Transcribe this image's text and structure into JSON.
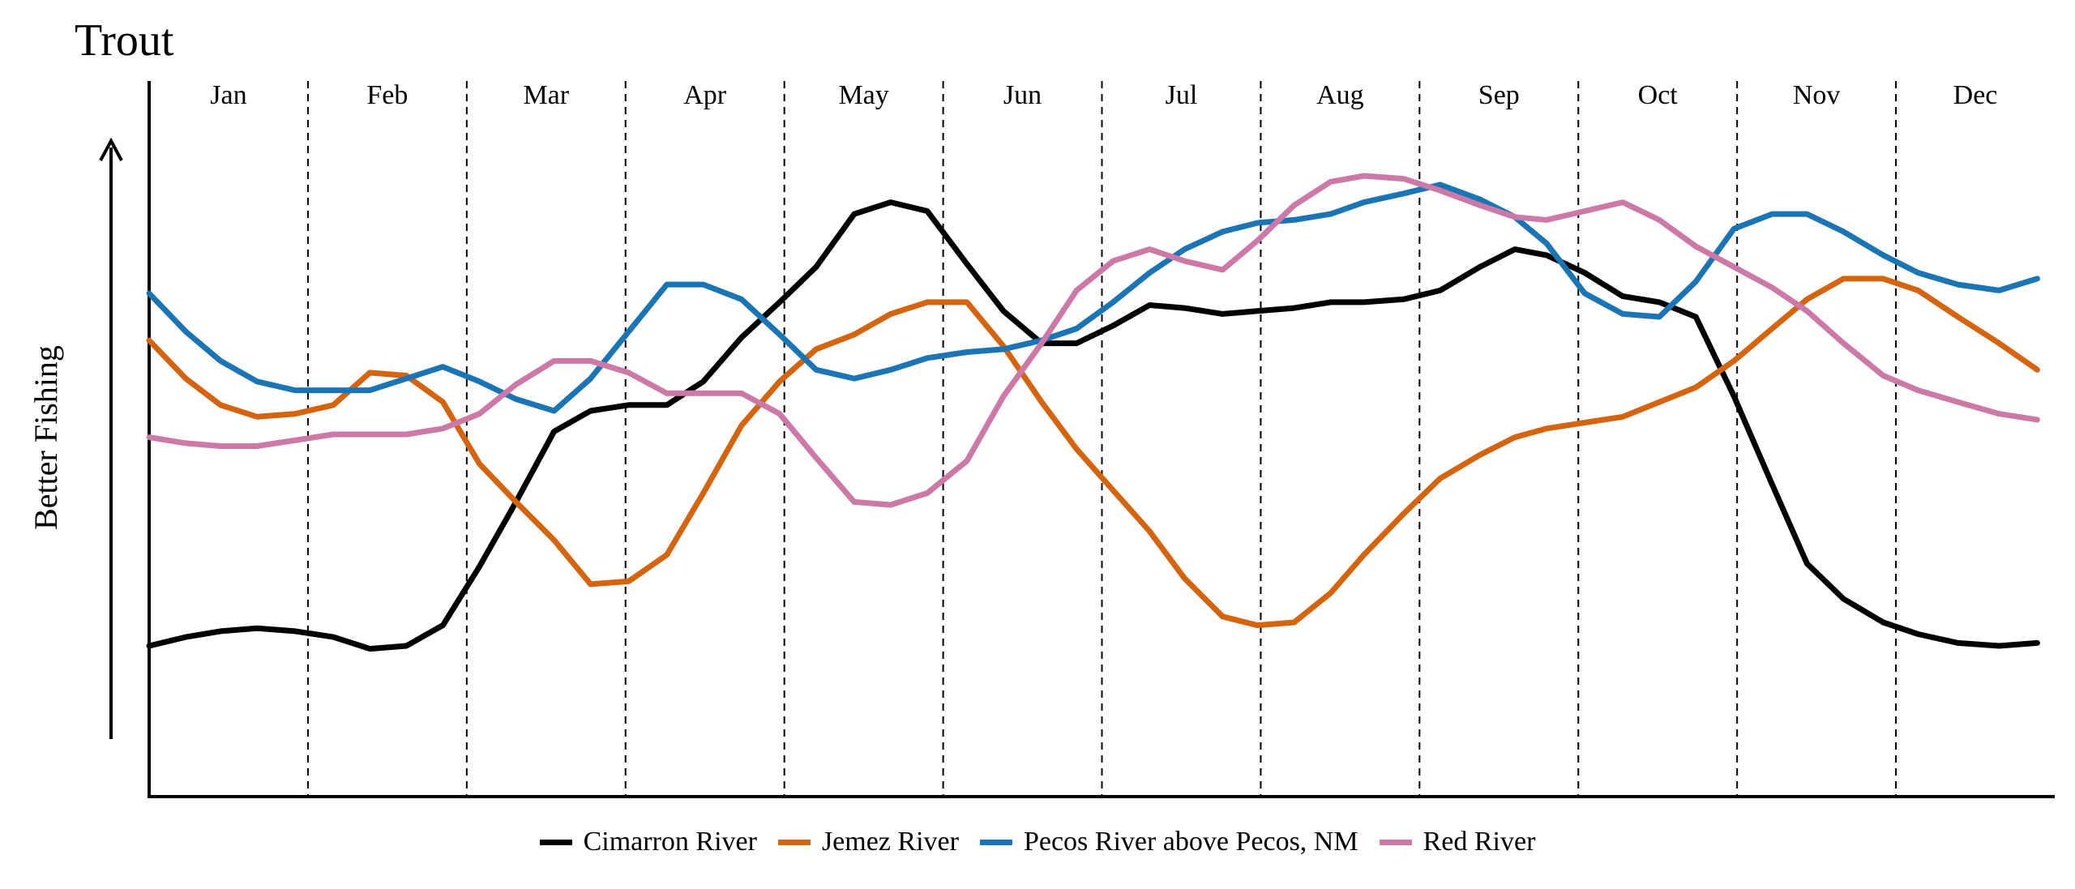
{
  "chart_data": {
    "type": "line",
    "title": "Trout",
    "ylabel": "Better Fishing",
    "categories": [
      "Jan",
      "Feb",
      "Mar",
      "Apr",
      "May",
      "Jun",
      "Jul",
      "Aug",
      "Sep",
      "Oct",
      "Nov",
      "Dec"
    ],
    "ylim": [
      0,
      100
    ],
    "grid": "monthly vertical dashed separators",
    "legend_position": "bottom",
    "series": [
      {
        "name": "Cimarron River",
        "color": "#000000",
        "points": [
          [
            0.0,
            16.0
          ],
          [
            0.23,
            17.5
          ],
          [
            0.45,
            18.5
          ],
          [
            0.68,
            19.0
          ],
          [
            0.92,
            18.5
          ],
          [
            1.16,
            17.5
          ],
          [
            1.39,
            15.5
          ],
          [
            1.62,
            16.0
          ],
          [
            1.85,
            19.5
          ],
          [
            2.08,
            29.5
          ],
          [
            2.31,
            40.5
          ],
          [
            2.55,
            52.5
          ],
          [
            2.78,
            56.0
          ],
          [
            3.02,
            57.0
          ],
          [
            3.26,
            57.0
          ],
          [
            3.49,
            61.0
          ],
          [
            3.73,
            68.5
          ],
          [
            3.97,
            74.5
          ],
          [
            4.2,
            80.5
          ],
          [
            4.44,
            89.5
          ],
          [
            4.67,
            91.5
          ],
          [
            4.9,
            90.0
          ],
          [
            5.15,
            81.0
          ],
          [
            5.38,
            73.0
          ],
          [
            5.62,
            67.5
          ],
          [
            5.84,
            67.5
          ],
          [
            6.07,
            70.5
          ],
          [
            6.3,
            74.0
          ],
          [
            6.52,
            73.5
          ],
          [
            6.76,
            72.5
          ],
          [
            6.98,
            73.0
          ],
          [
            7.21,
            73.5
          ],
          [
            7.44,
            74.5
          ],
          [
            7.65,
            74.5
          ],
          [
            7.9,
            75.0
          ],
          [
            8.13,
            76.5
          ],
          [
            8.38,
            80.5
          ],
          [
            8.6,
            83.5
          ],
          [
            8.8,
            82.5
          ],
          [
            9.04,
            79.5
          ],
          [
            9.28,
            75.5
          ],
          [
            9.51,
            74.5
          ],
          [
            9.74,
            72.0
          ],
          [
            9.98,
            58.5
          ],
          [
            10.22,
            43.5
          ],
          [
            10.44,
            30.0
          ],
          [
            10.67,
            24.0
          ],
          [
            10.92,
            20.0
          ],
          [
            11.14,
            18.0
          ],
          [
            11.39,
            16.5
          ],
          [
            11.65,
            16.0
          ],
          [
            11.89,
            16.5
          ]
        ]
      },
      {
        "name": "Jemez River",
        "color": "#D5640F",
        "points": [
          [
            0.0,
            68.0
          ],
          [
            0.23,
            61.5
          ],
          [
            0.45,
            57.0
          ],
          [
            0.68,
            55.0
          ],
          [
            0.92,
            55.5
          ],
          [
            1.16,
            57.0
          ],
          [
            1.39,
            62.5
          ],
          [
            1.62,
            62.0
          ],
          [
            1.85,
            57.5
          ],
          [
            2.08,
            47.0
          ],
          [
            2.31,
            40.5
          ],
          [
            2.55,
            34.0
          ],
          [
            2.78,
            26.5
          ],
          [
            3.02,
            27.0
          ],
          [
            3.26,
            31.5
          ],
          [
            3.49,
            42.0
          ],
          [
            3.73,
            53.5
          ],
          [
            3.97,
            61.0
          ],
          [
            4.2,
            66.5
          ],
          [
            4.44,
            69.0
          ],
          [
            4.67,
            72.5
          ],
          [
            4.9,
            74.5
          ],
          [
            5.15,
            74.5
          ],
          [
            5.38,
            67.0
          ],
          [
            5.62,
            57.5
          ],
          [
            5.84,
            49.5
          ],
          [
            6.07,
            42.5
          ],
          [
            6.3,
            35.5
          ],
          [
            6.52,
            27.5
          ],
          [
            6.76,
            21.0
          ],
          [
            6.98,
            19.5
          ],
          [
            7.21,
            20.0
          ],
          [
            7.44,
            25.0
          ],
          [
            7.65,
            31.5
          ],
          [
            7.9,
            38.5
          ],
          [
            8.13,
            44.5
          ],
          [
            8.38,
            48.5
          ],
          [
            8.6,
            51.5
          ],
          [
            8.8,
            53.0
          ],
          [
            9.04,
            54.0
          ],
          [
            9.28,
            55.0
          ],
          [
            9.51,
            57.5
          ],
          [
            9.74,
            60.0
          ],
          [
            9.98,
            64.5
          ],
          [
            10.22,
            70.0
          ],
          [
            10.44,
            75.0
          ],
          [
            10.67,
            78.5
          ],
          [
            10.92,
            78.5
          ],
          [
            11.14,
            76.5
          ],
          [
            11.39,
            72.0
          ],
          [
            11.65,
            67.5
          ],
          [
            11.89,
            63.0
          ]
        ]
      },
      {
        "name": "Pecos River above Pecos, NM",
        "color": "#1B75B5",
        "points": [
          [
            0.0,
            76.0
          ],
          [
            0.23,
            69.5
          ],
          [
            0.45,
            64.5
          ],
          [
            0.68,
            61.0
          ],
          [
            0.92,
            59.5
          ],
          [
            1.16,
            59.5
          ],
          [
            1.39,
            59.5
          ],
          [
            1.62,
            61.5
          ],
          [
            1.85,
            63.5
          ],
          [
            2.08,
            61.0
          ],
          [
            2.31,
            58.0
          ],
          [
            2.55,
            56.0
          ],
          [
            2.78,
            61.5
          ],
          [
            3.02,
            69.5
          ],
          [
            3.26,
            77.5
          ],
          [
            3.49,
            77.5
          ],
          [
            3.73,
            75.0
          ],
          [
            3.97,
            69.0
          ],
          [
            4.2,
            63.0
          ],
          [
            4.44,
            61.5
          ],
          [
            4.67,
            63.0
          ],
          [
            4.9,
            65.0
          ],
          [
            5.15,
            66.0
          ],
          [
            5.38,
            66.5
          ],
          [
            5.62,
            68.0
          ],
          [
            5.84,
            70.0
          ],
          [
            6.07,
            74.5
          ],
          [
            6.3,
            79.5
          ],
          [
            6.52,
            83.5
          ],
          [
            6.76,
            86.5
          ],
          [
            6.98,
            88.0
          ],
          [
            7.21,
            88.5
          ],
          [
            7.44,
            89.5
          ],
          [
            7.65,
            91.5
          ],
          [
            7.9,
            93.0
          ],
          [
            8.13,
            94.5
          ],
          [
            8.38,
            92.0
          ],
          [
            8.6,
            89.0
          ],
          [
            8.8,
            84.5
          ],
          [
            9.04,
            76.0
          ],
          [
            9.28,
            72.5
          ],
          [
            9.51,
            72.0
          ],
          [
            9.74,
            78.0
          ],
          [
            9.98,
            87.0
          ],
          [
            10.22,
            89.5
          ],
          [
            10.44,
            89.5
          ],
          [
            10.67,
            86.5
          ],
          [
            10.92,
            82.5
          ],
          [
            11.14,
            79.5
          ],
          [
            11.39,
            77.5
          ],
          [
            11.65,
            76.5
          ],
          [
            11.89,
            78.5
          ]
        ]
      },
      {
        "name": "Red River",
        "color": "#CC79A7",
        "points": [
          [
            0.0,
            51.5
          ],
          [
            0.23,
            50.5
          ],
          [
            0.45,
            50.0
          ],
          [
            0.68,
            50.0
          ],
          [
            0.92,
            51.0
          ],
          [
            1.16,
            52.0
          ],
          [
            1.39,
            52.0
          ],
          [
            1.62,
            52.0
          ],
          [
            1.85,
            53.0
          ],
          [
            2.08,
            55.5
          ],
          [
            2.31,
            60.5
          ],
          [
            2.55,
            64.5
          ],
          [
            2.78,
            64.5
          ],
          [
            3.02,
            62.5
          ],
          [
            3.26,
            59.0
          ],
          [
            3.49,
            59.0
          ],
          [
            3.73,
            59.0
          ],
          [
            3.97,
            55.5
          ],
          [
            4.2,
            48.0
          ],
          [
            4.44,
            40.5
          ],
          [
            4.67,
            40.0
          ],
          [
            4.9,
            42.0
          ],
          [
            5.15,
            47.5
          ],
          [
            5.38,
            58.5
          ],
          [
            5.62,
            67.5
          ],
          [
            5.84,
            76.5
          ],
          [
            6.07,
            81.5
          ],
          [
            6.3,
            83.5
          ],
          [
            6.52,
            81.5
          ],
          [
            6.76,
            80.0
          ],
          [
            6.98,
            85.0
          ],
          [
            7.21,
            91.0
          ],
          [
            7.44,
            95.0
          ],
          [
            7.65,
            96.0
          ],
          [
            7.9,
            95.5
          ],
          [
            8.13,
            93.5
          ],
          [
            8.38,
            91.0
          ],
          [
            8.6,
            89.0
          ],
          [
            8.8,
            88.5
          ],
          [
            9.04,
            90.0
          ],
          [
            9.28,
            91.5
          ],
          [
            9.51,
            88.5
          ],
          [
            9.74,
            84.0
          ],
          [
            9.98,
            80.5
          ],
          [
            10.22,
            77.0
          ],
          [
            10.44,
            73.0
          ],
          [
            10.67,
            67.5
          ],
          [
            10.92,
            62.0
          ],
          [
            11.14,
            59.5
          ],
          [
            11.39,
            57.5
          ],
          [
            11.65,
            55.5
          ],
          [
            11.89,
            54.5
          ]
        ]
      }
    ]
  }
}
